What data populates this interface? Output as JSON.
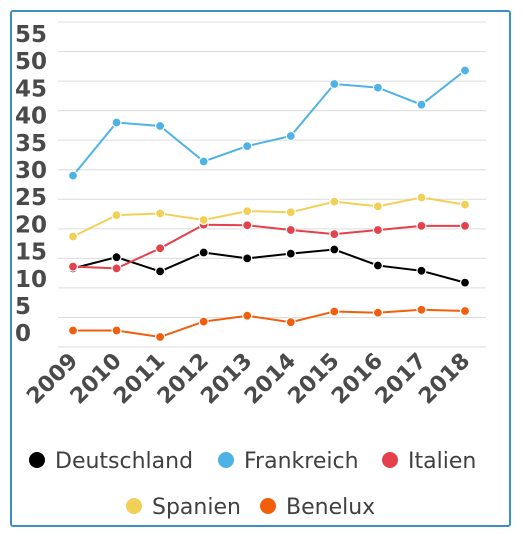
{
  "chart_data": {
    "type": "line",
    "title": "",
    "xlabel": "",
    "ylabel": "",
    "categories": [
      "2009",
      "2010",
      "2011",
      "2012",
      "2013",
      "2014",
      "2015",
      "2016",
      "2017",
      "2018"
    ],
    "yticks": [
      "0",
      "5",
      "10",
      "15",
      "20",
      "25",
      "30",
      "35",
      "40",
      "45",
      "50",
      "55"
    ],
    "ylim": [
      0,
      55
    ],
    "grid": true,
    "legend_position": "bottom",
    "series": [
      {
        "name": "Deutschland",
        "color": "#000000",
        "values": [
          13.3,
          15.2,
          12.8,
          16.0,
          15.0,
          15.8,
          16.5,
          13.8,
          12.9,
          10.9
        ]
      },
      {
        "name": "Frankreich",
        "color": "#4db3e6",
        "values": [
          29.0,
          38.0,
          37.4,
          31.4,
          34.0,
          35.7,
          44.5,
          43.9,
          41.0,
          46.8
        ]
      },
      {
        "name": "Italien",
        "color": "#e5404b",
        "values": [
          13.6,
          13.3,
          16.7,
          20.7,
          20.6,
          19.8,
          19.1,
          19.8,
          20.5,
          20.5
        ]
      },
      {
        "name": "Spanien",
        "color": "#f2d058",
        "values": [
          18.7,
          22.3,
          22.6,
          21.5,
          23.0,
          22.8,
          24.6,
          23.8,
          25.3,
          24.1
        ]
      },
      {
        "name": "Benelux",
        "color": "#f25f0c",
        "values": [
          2.8,
          2.8,
          1.7,
          4.3,
          5.3,
          4.2,
          6.0,
          5.8,
          6.3,
          6.1
        ]
      }
    ]
  }
}
